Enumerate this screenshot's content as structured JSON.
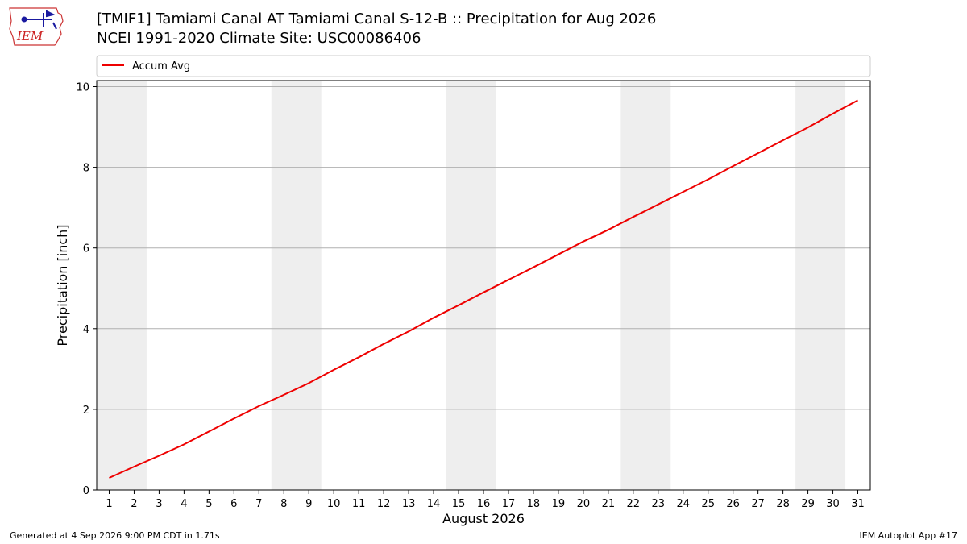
{
  "header": {
    "title_line1": "[TMIF1] Tamiami Canal  AT Tamiami Canal S-12-B :: Precipitation for Aug 2026",
    "title_line2": "NCEI 1991-2020 Climate Site: USC00086406",
    "logo_text": "IEM"
  },
  "footer": {
    "generated": "Generated at 4 Sep 2026 9:00 PM CDT in 1.71s",
    "app": "IEM Autoplot App #17"
  },
  "chart_data": {
    "type": "line",
    "xlabel": "August 2026",
    "ylabel": "Precipitation [inch]",
    "xlim": [
      0.5,
      31.5
    ],
    "ylim": [
      0,
      10.15
    ],
    "yticks": [
      0,
      2,
      4,
      6,
      8,
      10
    ],
    "grid": "horizontal",
    "legend_placement": "top",
    "weekend_shading": [
      [
        0.5,
        2.5
      ],
      [
        7.5,
        9.5
      ],
      [
        14.5,
        16.5
      ],
      [
        21.5,
        23.5
      ],
      [
        28.5,
        30.5
      ]
    ],
    "x": [
      1,
      2,
      3,
      4,
      5,
      6,
      7,
      8,
      9,
      10,
      11,
      12,
      13,
      14,
      15,
      16,
      17,
      18,
      19,
      20,
      21,
      22,
      23,
      24,
      25,
      26,
      27,
      28,
      29,
      30,
      31
    ],
    "series": [
      {
        "name": "Accum Avg",
        "color": "#ee0000",
        "values": [
          0.3,
          0.58,
          0.85,
          1.13,
          1.45,
          1.77,
          2.08,
          2.36,
          2.65,
          2.98,
          3.29,
          3.62,
          3.93,
          4.27,
          4.58,
          4.9,
          5.21,
          5.52,
          5.84,
          6.16,
          6.45,
          6.77,
          7.08,
          7.39,
          7.7,
          8.03,
          8.35,
          8.67,
          8.99,
          9.33,
          9.66
        ]
      }
    ]
  }
}
